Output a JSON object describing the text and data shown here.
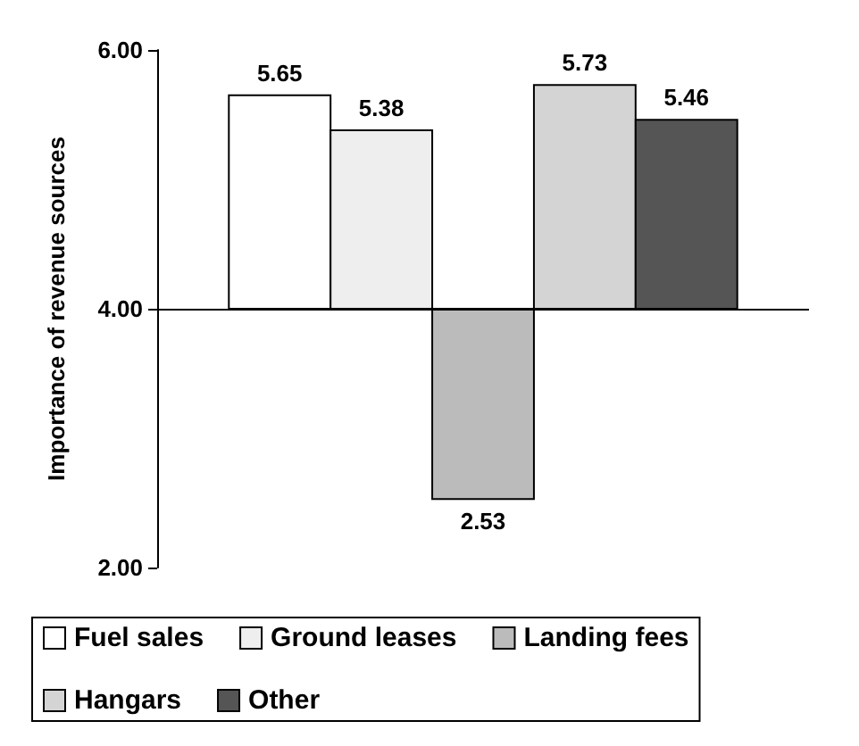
{
  "chart_data": {
    "type": "bar",
    "ylabel": "Importance of revenue sources",
    "categories": [
      null
    ],
    "series": [
      {
        "name": "Fuel sales",
        "color": "#ffffff",
        "base": [
          4
        ],
        "values": [
          1.65
        ],
        "value_labels": [
          "5.65"
        ]
      },
      {
        "name": "Ground leases",
        "color": "#eeeeee",
        "base": [
          4
        ],
        "values": [
          1.38
        ],
        "value_labels": [
          "5.38"
        ]
      },
      {
        "name": "Landing fees",
        "color": "#bbbbbb",
        "base": [
          4
        ],
        "values": [
          -1.47
        ],
        "value_labels": [
          "2.53"
        ]
      },
      {
        "name": "Hangars",
        "color": "#d4d4d4",
        "base": [
          4
        ],
        "values": [
          1.73
        ],
        "value_labels": [
          "5.73"
        ]
      },
      {
        "name": "Other",
        "color": "#555555",
        "base": [
          4
        ],
        "values": [
          1.46
        ],
        "value_labels": [
          "5.46"
        ]
      }
    ],
    "ylim": [
      2,
      6
    ],
    "yticks": [
      {
        "value": 2,
        "label": "2.00"
      },
      {
        "value": 4,
        "label": "4.00"
      },
      {
        "value": 6,
        "label": "6.00"
      }
    ],
    "ref_lines": [
      {
        "axis": "y",
        "value": 4
      }
    ],
    "legend": "bottom",
    "grid": false
  }
}
